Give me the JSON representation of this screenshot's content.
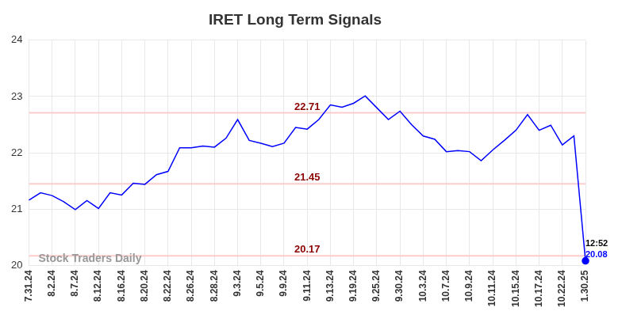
{
  "chart_data": {
    "type": "line",
    "title": "IRET Long Term Signals",
    "categories": [
      "7.31.24",
      null,
      "8.2.24",
      null,
      "8.7.24",
      null,
      "8.12.24",
      null,
      "8.16.24",
      null,
      "8.20.24",
      null,
      "8.22.24",
      null,
      "8.26.24",
      null,
      "8.28.24",
      null,
      "9.3.24",
      null,
      "9.5.24",
      null,
      "9.9.24",
      null,
      "9.11.24",
      null,
      "9.13.24",
      null,
      "9.19.24",
      null,
      "9.25.24",
      null,
      "9.30.24",
      null,
      "10.3.24",
      null,
      "10.7.24",
      null,
      "10.9.24",
      null,
      "10.11.24",
      null,
      "10.15.24",
      null,
      "10.17.24",
      null,
      "10.22.24",
      null,
      "1.30.25"
    ],
    "values": [
      21.16,
      21.29,
      21.24,
      21.13,
      20.99,
      21.15,
      21.01,
      21.29,
      21.25,
      21.46,
      21.44,
      21.61,
      21.67,
      22.09,
      22.09,
      22.12,
      22.1,
      22.26,
      22.59,
      22.22,
      22.17,
      22.11,
      22.17,
      22.45,
      22.42,
      22.59,
      22.85,
      22.81,
      22.88,
      23.01,
      22.8,
      22.59,
      22.74,
      22.5,
      22.3,
      22.24,
      22.02,
      22.04,
      22.02,
      21.86,
      22.05,
      22.22,
      22.4,
      22.68,
      22.4,
      22.49,
      22.14,
      22.3,
      20.08
    ],
    "color": "#0000ff",
    "ylim": [
      20,
      24
    ],
    "yticks": [
      20,
      21,
      22,
      23,
      24
    ],
    "grid": true,
    "reference_lines": [
      22.71,
      21.45,
      20.17
    ],
    "last_point_time": "12:52",
    "watermark": "Stock Traders Daily"
  }
}
